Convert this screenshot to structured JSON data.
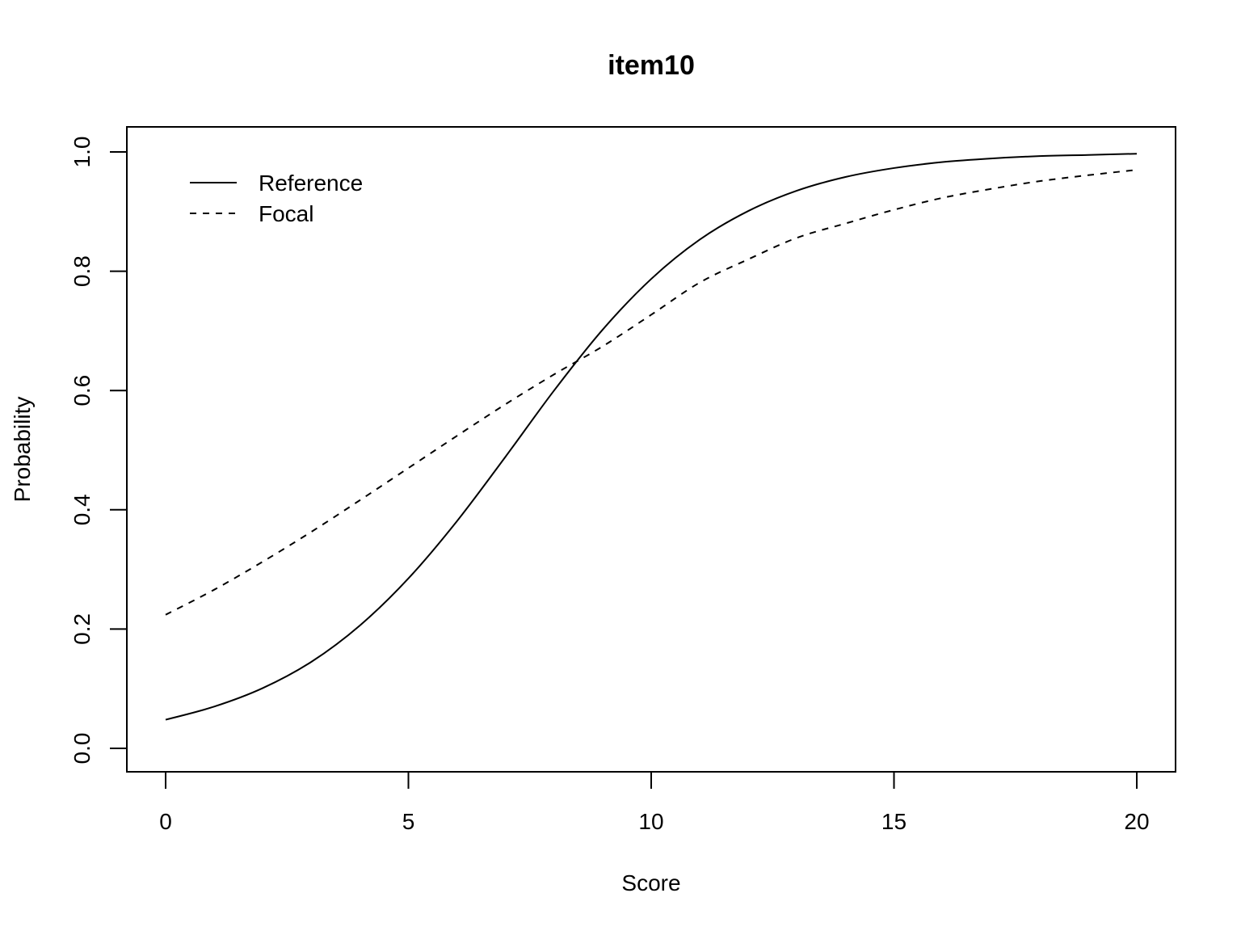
{
  "chart_data": {
    "type": "line",
    "title": "item10",
    "xlabel": "Score",
    "ylabel": "Probability",
    "xlim": [
      0,
      20
    ],
    "ylim": [
      0.0,
      1.0
    ],
    "xticks": [
      0,
      5,
      10,
      15,
      20
    ],
    "xtick_labels": [
      "0",
      "5",
      "10",
      "15",
      "20"
    ],
    "yticks": [
      0.0,
      0.2,
      0.4,
      0.6,
      0.8,
      1.0
    ],
    "ytick_labels": [
      "0.0",
      "0.2",
      "0.4",
      "0.6",
      "0.8",
      "1.0"
    ],
    "grid": false,
    "legend_position": "top-left",
    "x": [
      0,
      1,
      2,
      3,
      4,
      5,
      6,
      7,
      8,
      9,
      10,
      11,
      12,
      13,
      14,
      15,
      16,
      17,
      18,
      19,
      20
    ],
    "series": [
      {
        "name": "Reference",
        "style": "solid",
        "color": "#000000",
        "values": [
          0.048,
          0.07,
          0.101,
          0.145,
          0.206,
          0.285,
          0.381,
          0.489,
          0.6,
          0.702,
          0.787,
          0.853,
          0.901,
          0.935,
          0.958,
          0.973,
          0.983,
          0.989,
          0.993,
          0.995,
          0.997
        ]
      },
      {
        "name": "Focal",
        "style": "dashed",
        "color": "#000000",
        "values": [
          0.224,
          0.266,
          0.313,
          0.363,
          0.416,
          0.47,
          0.524,
          0.577,
          0.627,
          0.674,
          0.727,
          0.781,
          0.82,
          0.856,
          0.88,
          0.903,
          0.923,
          0.938,
          0.951,
          0.961,
          0.97
        ]
      }
    ]
  }
}
